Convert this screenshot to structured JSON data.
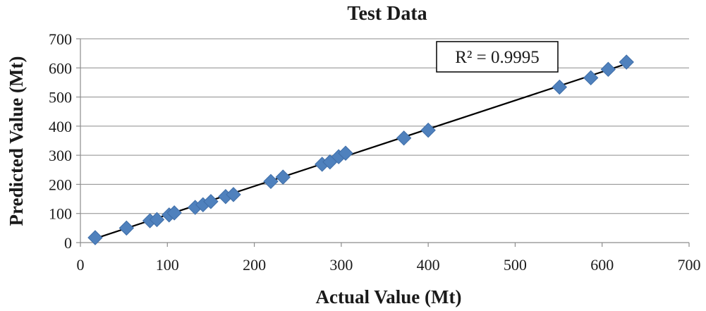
{
  "chart_data": {
    "type": "scatter",
    "title": "Test Data",
    "xlabel": "Actual Value (Mt)",
    "ylabel": "Predicted Value (Mt)",
    "xlim": [
      0,
      700
    ],
    "ylim": [
      0,
      700
    ],
    "xticks": [
      0,
      100,
      200,
      300,
      400,
      500,
      600,
      700
    ],
    "yticks": [
      0,
      100,
      200,
      300,
      400,
      500,
      600,
      700
    ],
    "grid": "horizontal",
    "legend": "none",
    "marker": "diamond",
    "marker_color": "#4f81bd",
    "trendline_color": "#000000",
    "trendline": {
      "x": [
        15,
        628
      ],
      "y": [
        12,
        614
      ]
    },
    "annotation": "R² = 0.9995",
    "points": [
      {
        "x": 17,
        "y": 17
      },
      {
        "x": 53,
        "y": 50
      },
      {
        "x": 80,
        "y": 75
      },
      {
        "x": 88,
        "y": 79
      },
      {
        "x": 102,
        "y": 95
      },
      {
        "x": 108,
        "y": 102
      },
      {
        "x": 132,
        "y": 121
      },
      {
        "x": 141,
        "y": 130
      },
      {
        "x": 150,
        "y": 141
      },
      {
        "x": 167,
        "y": 158
      },
      {
        "x": 176,
        "y": 165
      },
      {
        "x": 219,
        "y": 210
      },
      {
        "x": 233,
        "y": 225
      },
      {
        "x": 278,
        "y": 269
      },
      {
        "x": 287,
        "y": 277
      },
      {
        "x": 297,
        "y": 295
      },
      {
        "x": 305,
        "y": 307
      },
      {
        "x": 372,
        "y": 359
      },
      {
        "x": 400,
        "y": 386
      },
      {
        "x": 551,
        "y": 534
      },
      {
        "x": 587,
        "y": 566
      },
      {
        "x": 607,
        "y": 595
      },
      {
        "x": 628,
        "y": 620
      }
    ]
  }
}
